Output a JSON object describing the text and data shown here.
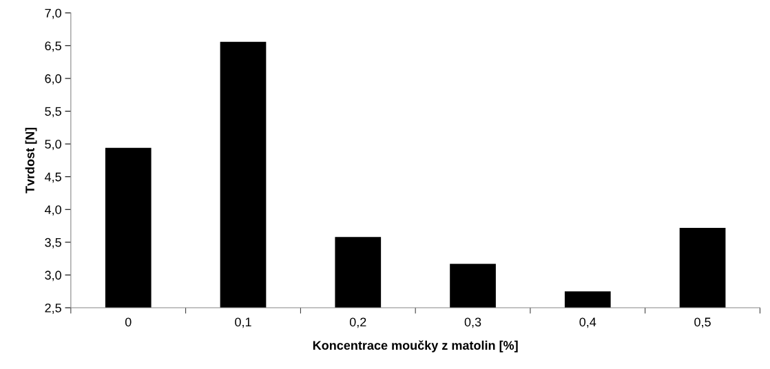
{
  "chart_data": {
    "type": "bar",
    "xlabel": "Koncentrace moučky z matolin [%]",
    "ylabel": "Tvrdost [N]",
    "categories": [
      "0",
      "0,1",
      "0,2",
      "0,3",
      "0,4",
      "0,5"
    ],
    "values": [
      4.94,
      6.56,
      3.58,
      3.17,
      2.75,
      3.72
    ],
    "color": "#000000",
    "ylim": [
      2.5,
      7.0
    ],
    "yticks": [
      {
        "value": 2.5,
        "label": "2,5"
      },
      {
        "value": 3.0,
        "label": "3,0"
      },
      {
        "value": 3.5,
        "label": "3,5"
      },
      {
        "value": 4.0,
        "label": "4,0"
      },
      {
        "value": 4.5,
        "label": "4,5"
      },
      {
        "value": 5.0,
        "label": "5,0"
      },
      {
        "value": 5.5,
        "label": "5,5"
      },
      {
        "value": 6.0,
        "label": "6,0"
      },
      {
        "value": 6.5,
        "label": "6,5"
      },
      {
        "value": 7.0,
        "label": "7,0"
      }
    ],
    "grid": false
  }
}
